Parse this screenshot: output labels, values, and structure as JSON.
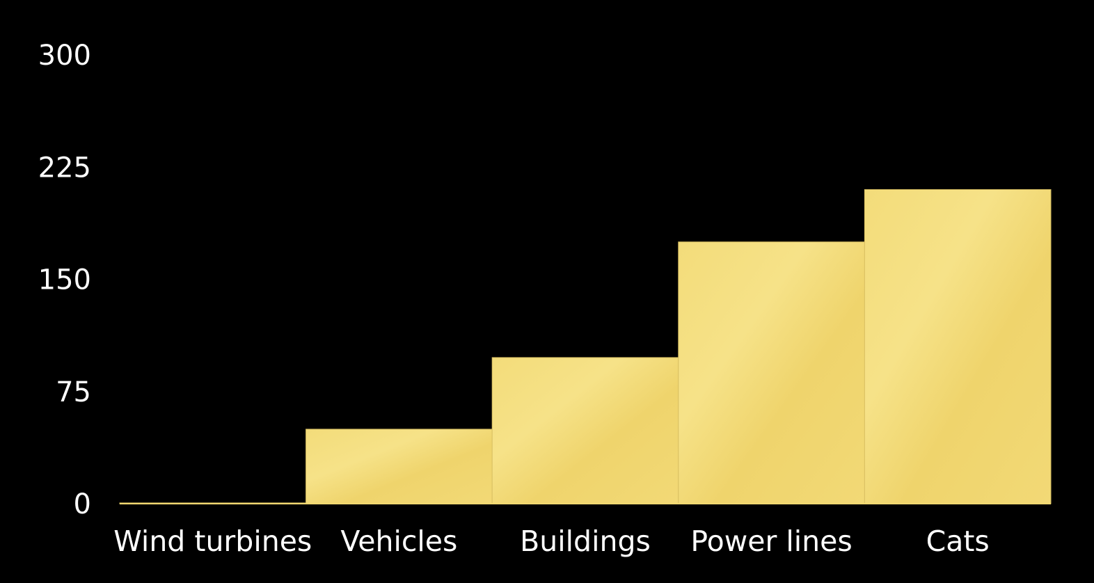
{
  "chart_data": {
    "type": "bar",
    "categories": [
      "Wind turbines",
      "Vehicles",
      "Buildings",
      "Power lines",
      "Cats"
    ],
    "values": [
      0.5,
      49.8,
      97.7,
      175,
      210
    ],
    "y_ticks": [
      "0",
      "75",
      "150",
      "225",
      "300"
    ],
    "ylim": [
      0,
      300
    ],
    "xlabel": "",
    "ylabel": "",
    "title": "",
    "grid": false,
    "legend": "none"
  },
  "colors": {
    "background": "#000000",
    "bar_fill": "#f1d871",
    "bar_highlight": "#f7e48d",
    "bar_edge": "#d9c062",
    "baseline": "#f1d871",
    "text": "#ffffff"
  }
}
